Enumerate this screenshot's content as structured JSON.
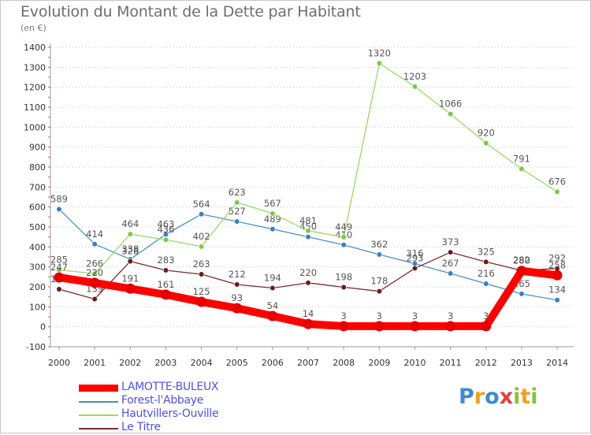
{
  "header": {
    "title": "Evolution du Montant de la Dette par Habitant",
    "subtitle": "(en €)"
  },
  "logo": {
    "text": "Proxiti",
    "letters": [
      {
        "ch": "P",
        "color": "#3a8ad6"
      },
      {
        "ch": "r",
        "color": "#f0a020"
      },
      {
        "ch": "o",
        "color": "#3a8ad6"
      },
      {
        "ch": "x",
        "color": "#e04040"
      },
      {
        "ch": "i",
        "color": "#8ac040"
      },
      {
        "ch": "t",
        "color": "#f0a020"
      },
      {
        "ch": "i",
        "color": "#8ac040"
      }
    ]
  },
  "chart_data": {
    "type": "line",
    "title": "Evolution du Montant de la Dette par Habitant",
    "ylabel": "(en €)",
    "xlabel": "",
    "x": [
      "2000",
      "2001",
      "2002",
      "2003",
      "2004",
      "2005",
      "2006",
      "2007",
      "2008",
      "2009",
      "2010",
      "2011",
      "2012",
      "2013",
      "2014"
    ],
    "ylim": [
      -100,
      1400
    ],
    "yticks": [
      -100,
      0,
      100,
      200,
      300,
      400,
      500,
      600,
      700,
      800,
      900,
      1000,
      1100,
      1200,
      1300,
      1400
    ],
    "grid": "horizontal dotted",
    "legend": "bottom-left",
    "series": [
      {
        "name": "Forest-l'Abbaye",
        "color": "#4a90c8",
        "marker": "#3a80c0",
        "values": [
          589,
          414,
          338,
          463,
          564,
          527,
          489,
          450,
          410,
          362,
          316,
          267,
          216,
          165,
          134
        ]
      },
      {
        "name": "Hautvillers-Ouville",
        "color": "#9ad86a",
        "marker": "#7cc84a",
        "values": [
          285,
          266,
          464,
          436,
          402,
          623,
          567,
          481,
          449,
          1320,
          1203,
          1066,
          920,
          791,
          676
        ]
      },
      {
        "name": "Le Titre",
        "color": "#7a2a2a",
        "marker": "#6a1a1a",
        "values": [
          188,
          139,
          328,
          283,
          263,
          212,
          194,
          220,
          198,
          178,
          293,
          373,
          325,
          282,
          292
        ]
      },
      {
        "name": "LAMOTTE-BULEUX",
        "color": "#ff0000",
        "marker": "#e60000",
        "values": [
          247,
          220,
          191,
          161,
          125,
          93,
          54,
          14,
          3,
          3,
          3,
          3,
          3,
          280,
          258
        ]
      }
    ]
  }
}
